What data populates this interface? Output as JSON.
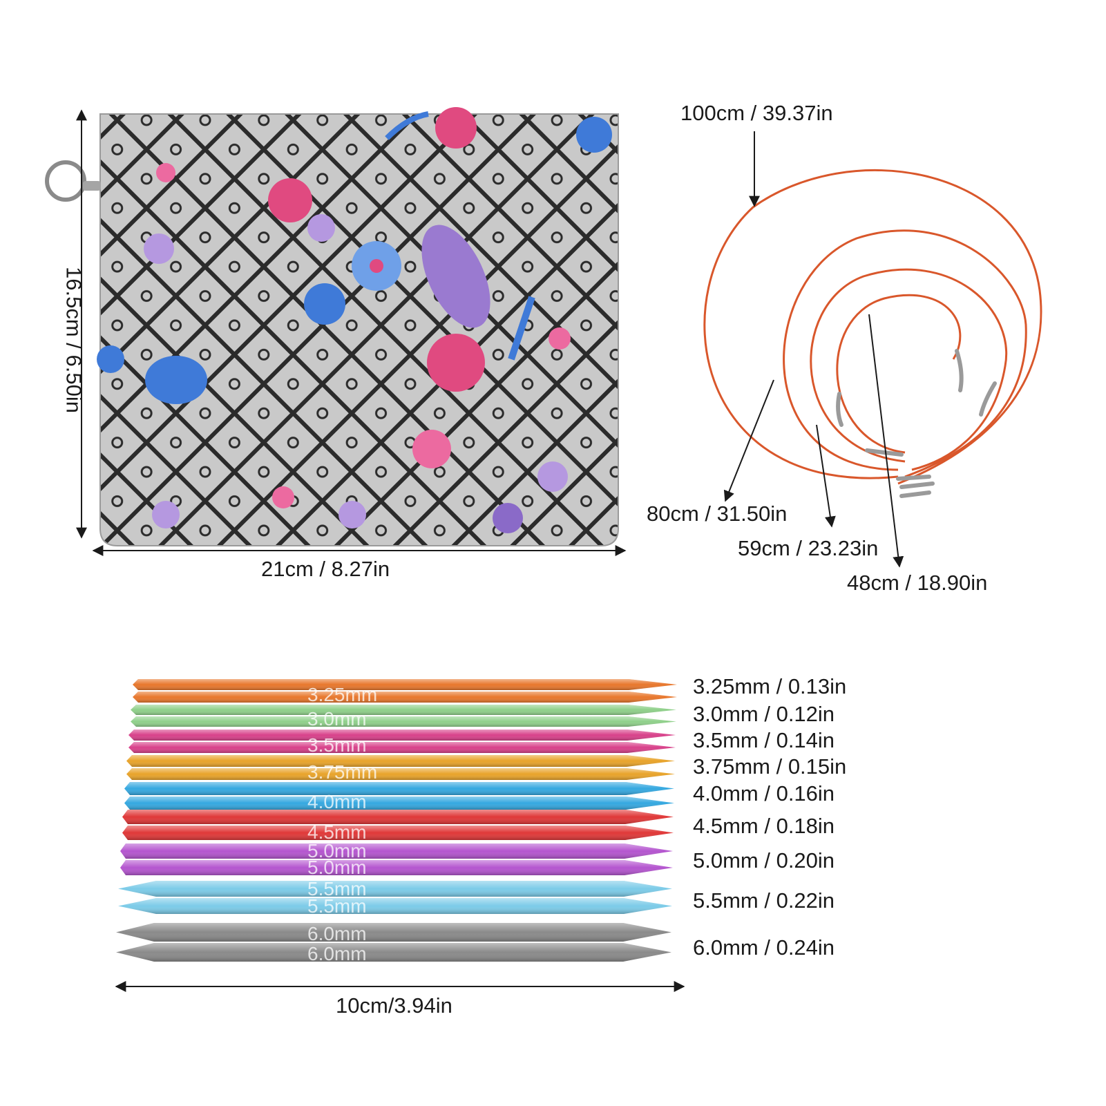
{
  "case": {
    "width_label": "21cm / 8.27in",
    "height_label": "16.5cm / 6.50in",
    "colors": {
      "base": "#c9c9c9",
      "lattice": "#2b2b2b",
      "rose": "#e04a80",
      "violet": "#9a7ad0",
      "blue": "#3f7ad8"
    }
  },
  "cables": [
    {
      "label": "100cm / 39.37in"
    },
    {
      "label": "80cm / 31.50in"
    },
    {
      "label": "59cm / 23.23in"
    },
    {
      "label": "48cm / 18.90in"
    }
  ],
  "cable_color": "#d9572b",
  "needles": [
    {
      "size_label": "3.25mm / 0.13in",
      "print": "3.25mm",
      "color": "#e8772c"
    },
    {
      "size_label": "3.0mm / 0.12in",
      "print": "3.0mm",
      "color": "#8fd08a"
    },
    {
      "size_label": "3.5mm / 0.14in",
      "print": "3.5mm",
      "color": "#d8418a"
    },
    {
      "size_label": "3.75mm / 0.15in",
      "print": "3.75mm",
      "color": "#e8a32a"
    },
    {
      "size_label": "4.0mm / 0.16in",
      "print": "4.0mm",
      "color": "#35a8e0"
    },
    {
      "size_label": "4.5mm / 0.18in",
      "print": "4.5mm",
      "color": "#e03838"
    },
    {
      "size_label": "5.0mm / 0.20in",
      "print": "5.0mm",
      "color": "#b455cf"
    },
    {
      "size_label": "5.5mm / 0.22in",
      "print": "5.5mm",
      "color": "#7ccbe8"
    },
    {
      "size_label": "6.0mm / 0.24in",
      "print": "6.0mm",
      "color": "#8a8a8a"
    }
  ],
  "needle_length_label": "10cm/3.94in"
}
